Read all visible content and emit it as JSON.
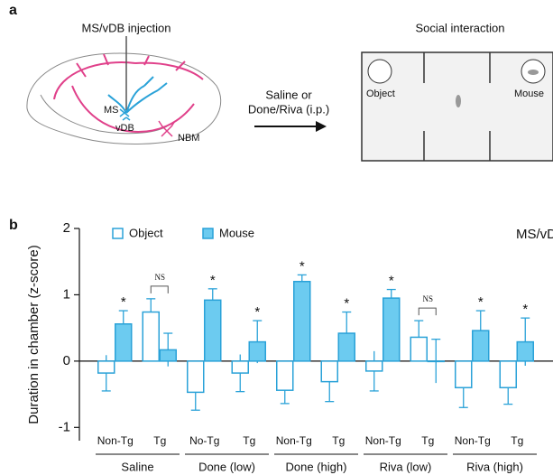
{
  "panel_a": {
    "label": "a",
    "injection_title": "MS/vDB injection",
    "region_ms": "MS",
    "region_vdb": "vDB",
    "region_nbm": "NBM",
    "treatment_line1": "Saline or",
    "treatment_line2": "Done/Riva (i.p.)",
    "arena_title": "Social interaction",
    "arena_left": "Object",
    "arena_right": "Mouse"
  },
  "panel_b_label": "b",
  "chart_data": {
    "type": "bar",
    "ylabel": "Duration in chamber (z-score)",
    "annotation": "MS/vDB",
    "categories": [
      "Non-Tg",
      "Tg",
      "No-Tg",
      "Tg",
      "Non-Tg",
      "Tg",
      "Non-Tg",
      "Tg",
      "Non-Tg",
      "Tg"
    ],
    "groups": [
      "Saline",
      "Done (low)",
      "Done (high)",
      "Riva (low)",
      "Riva (high)"
    ],
    "series": [
      {
        "name": "Object",
        "color": "#2aa2d8",
        "fill": "#ffffff",
        "values": [
          -0.18,
          0.74,
          -0.47,
          -0.18,
          -0.44,
          -0.31,
          -0.15,
          0.36,
          -0.4,
          -0.4
        ],
        "errors": [
          0.27,
          0.2,
          0.27,
          0.28,
          0.2,
          0.3,
          0.3,
          0.25,
          0.3,
          0.25
        ]
      },
      {
        "name": "Mouse",
        "color": "#2aa2d8",
        "fill": "#6ccbf0",
        "values": [
          0.56,
          0.17,
          0.92,
          0.29,
          1.2,
          0.42,
          0.95,
          0.0,
          0.46,
          0.29
        ],
        "errors": [
          0.2,
          0.25,
          0.17,
          0.32,
          0.1,
          0.32,
          0.13,
          0.33,
          0.3,
          0.36
        ]
      }
    ],
    "significance": [
      "*",
      "NS",
      "*",
      "*",
      "*",
      "*",
      "*",
      "NS",
      "*",
      "*"
    ],
    "ylim": [
      -1.2,
      2
    ],
    "yticks": [
      -1,
      0,
      1,
      2
    ]
  }
}
